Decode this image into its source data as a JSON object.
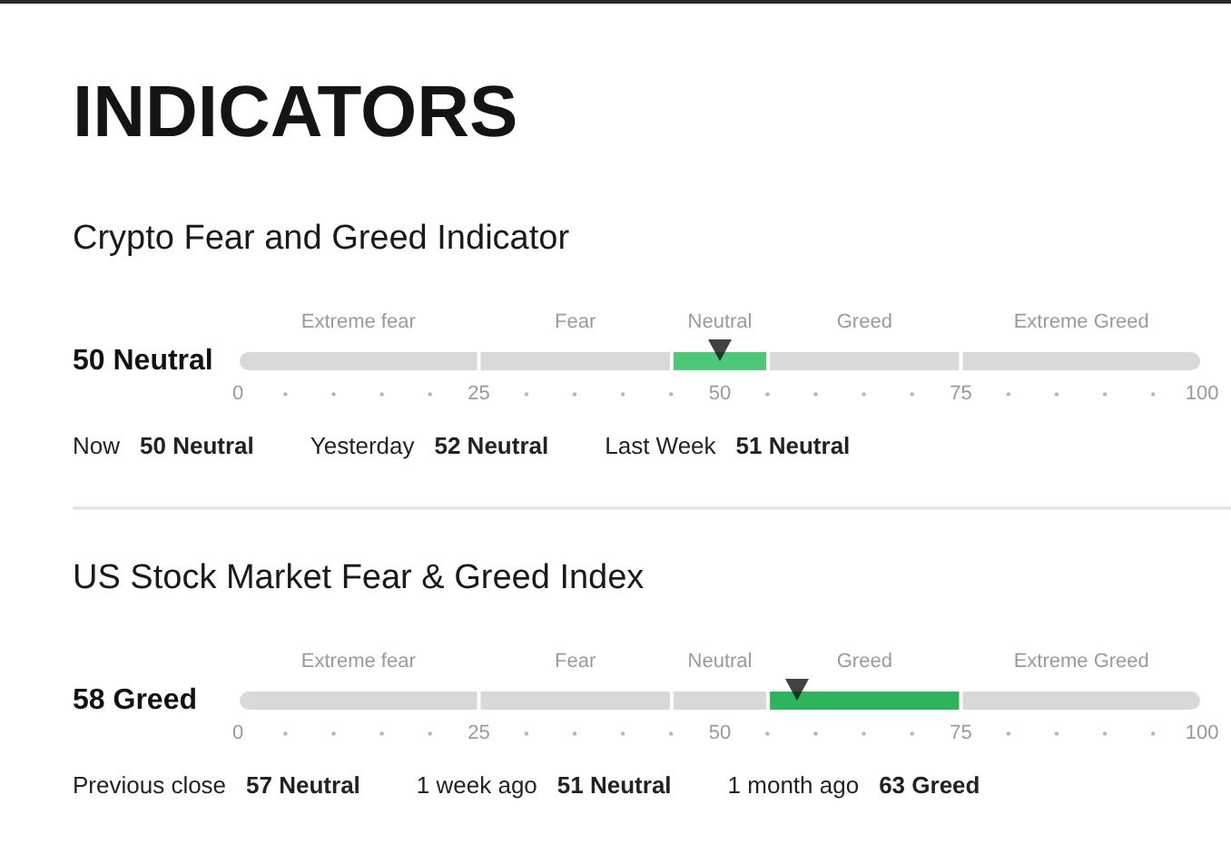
{
  "chart_data": [
    {
      "type": "bar",
      "orientation": "horizontal",
      "stacked": true,
      "title": "INDICATORS",
      "subtitle": "Crypto Fear and Greed Indicator",
      "categories": [
        "50 Neutral"
      ],
      "series": [
        {
          "name": "Extreme fear",
          "color": "#d9d9d9",
          "values": [
            25
          ]
        },
        {
          "name": "Fear",
          "color": "#d9d9d9",
          "values": [
            20
          ]
        },
        {
          "name": "Neutral",
          "color": "#4cc878",
          "values": [
            10
          ]
        },
        {
          "name": "Greed",
          "color": "#d9d9d9",
          "values": [
            20
          ]
        },
        {
          "name": "Extreme Greed",
          "color": "#d9d9d9",
          "values": [
            25
          ]
        },
        {
          "type": "scatter",
          "color": "#111111",
          "values": [
            50
          ]
        }
      ],
      "marker": "triangle",
      "xlim": [
        0,
        100
      ],
      "xticks": [
        0,
        25,
        50,
        75,
        100
      ]
    },
    {
      "type": "other",
      "annotations": [
        "Now",
        "50 Neutral",
        "Yesterday",
        "52 Neutral",
        "Last Week",
        "51 Neutral"
      ]
    },
    {
      "type": "bar",
      "orientation": "horizontal",
      "stacked": true,
      "title": "US Stock Market Fear & Greed Index",
      "categories": [
        "58 Greed"
      ],
      "series": [
        {
          "name": "Extreme fear",
          "color": "#d9d9d9",
          "values": [
            25
          ]
        },
        {
          "name": "Fear",
          "color": "#d9d9d9",
          "values": [
            20
          ]
        },
        {
          "name": "Neutral",
          "color": "#d9d9d9",
          "values": [
            10
          ]
        },
        {
          "name": "Greed",
          "color": "#2eb45c",
          "values": [
            20
          ]
        },
        {
          "name": "Extreme Greed",
          "color": "#d9d9d9",
          "values": [
            25
          ]
        },
        {
          "type": "scatter",
          "color": "#111111",
          "values": [
            58
          ]
        }
      ],
      "marker": "triangle",
      "xlim": [
        0,
        100
      ],
      "xticks": [
        0,
        25,
        50,
        75,
        100
      ]
    },
    {
      "type": "other",
      "annotations": [
        "Previous close",
        "57 Neutral",
        "1 week ago",
        "51 Neutral",
        "1 month ago",
        "63 Greed"
      ]
    }
  ]
}
